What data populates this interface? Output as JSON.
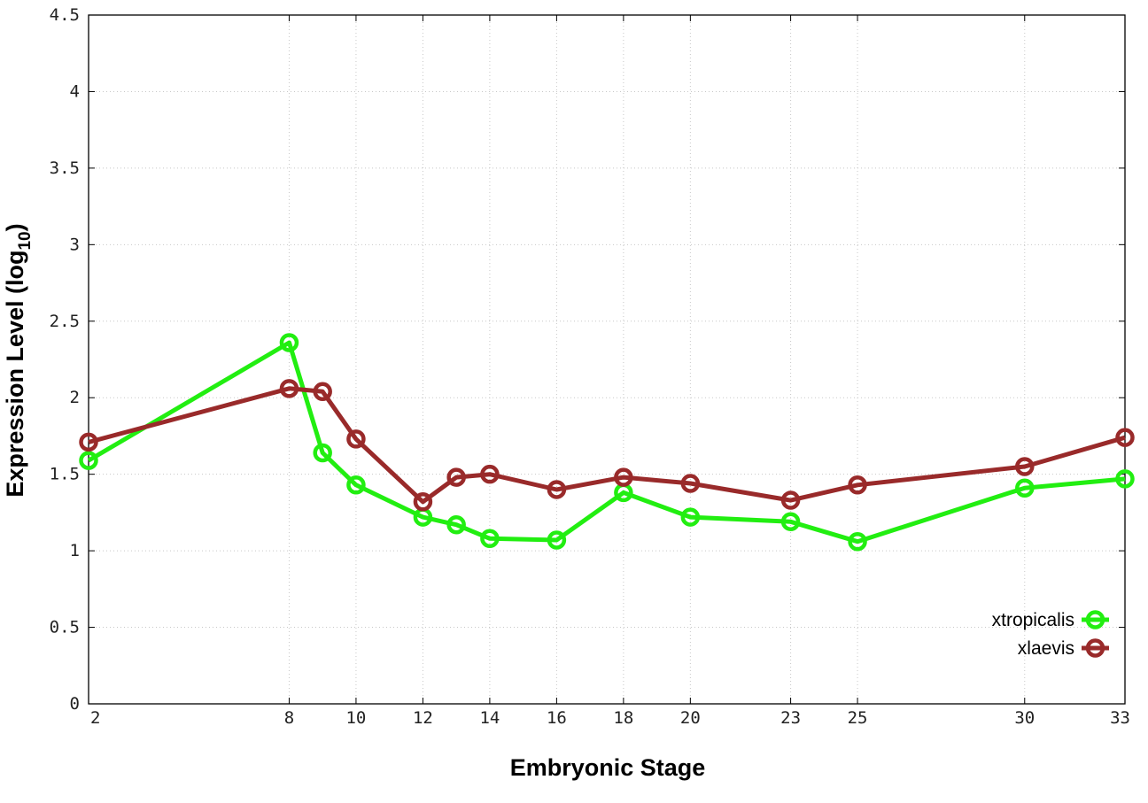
{
  "chart_data": {
    "type": "line",
    "title": "",
    "xlabel": "Embryonic Stage",
    "ylabel_main": "Expression Level (log",
    "ylabel_sub": "10",
    "ylabel_close": ")",
    "x": [
      2,
      8,
      9,
      10,
      12,
      13,
      14,
      16,
      18,
      20,
      23,
      25,
      30,
      33
    ],
    "x_ticks": [
      2,
      8,
      10,
      12,
      14,
      16,
      18,
      20,
      23,
      25,
      30,
      33
    ],
    "xlim": [
      2,
      33
    ],
    "ylim": [
      0,
      4.5
    ],
    "y_ticks": [
      0,
      0.5,
      1,
      1.5,
      2,
      2.5,
      3,
      3.5,
      4,
      4.5
    ],
    "y_tick_labels": [
      "0",
      "0.5",
      "1",
      "1.5",
      "2",
      "2.5",
      "3",
      "3.5",
      "4",
      "4.5"
    ],
    "grid": true,
    "legend_position": "bottom-right",
    "series": [
      {
        "name": "xtropicalis",
        "color": "#22ee11",
        "values": [
          1.59,
          2.36,
          1.64,
          1.43,
          1.22,
          1.17,
          1.08,
          1.07,
          1.38,
          1.22,
          1.19,
          1.06,
          1.41,
          1.47
        ]
      },
      {
        "name": "xlaevis",
        "color": "#992a2a",
        "values": [
          1.71,
          2.06,
          2.04,
          1.73,
          1.32,
          1.48,
          1.5,
          1.4,
          1.48,
          1.44,
          1.33,
          1.43,
          1.55,
          1.74
        ]
      }
    ]
  }
}
